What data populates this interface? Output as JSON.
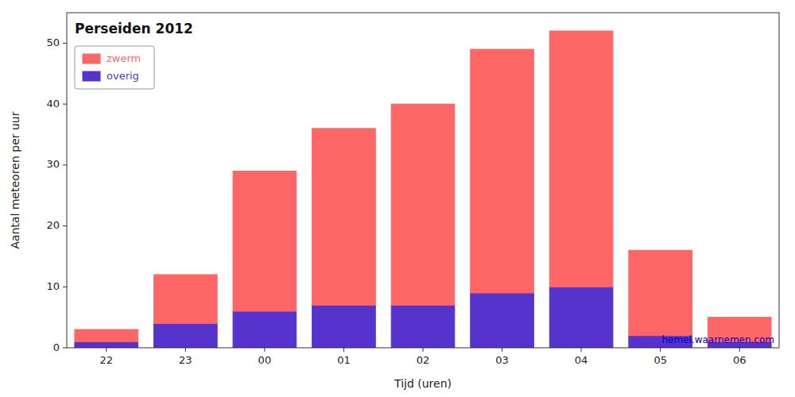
{
  "chart_data": {
    "type": "bar",
    "stacked": true,
    "title": "Perseiden 2012",
    "x_label": "Tijd (uren)",
    "y_label": "Aantal meteoren per uur",
    "categories": [
      "22",
      "23",
      "00",
      "01",
      "02",
      "03",
      "04",
      "05",
      "06"
    ],
    "series": [
      {
        "name": "overig",
        "color": "#5533CC",
        "values": [
          1,
          4,
          6,
          7,
          7,
          9,
          10,
          2,
          1
        ]
      },
      {
        "name": "zwerm",
        "color": "#FF6666",
        "values": [
          2,
          8,
          23,
          29,
          33,
          40,
          42,
          14,
          4
        ]
      }
    ],
    "ylim": [
      0,
      55
    ],
    "yticks": [
      0,
      10,
      20,
      30,
      40,
      50
    ],
    "grid": false,
    "legend": "upper left",
    "annotations": [
      {
        "text": "hemel.waarnemen.com",
        "color": "#0000CC"
      }
    ]
  }
}
